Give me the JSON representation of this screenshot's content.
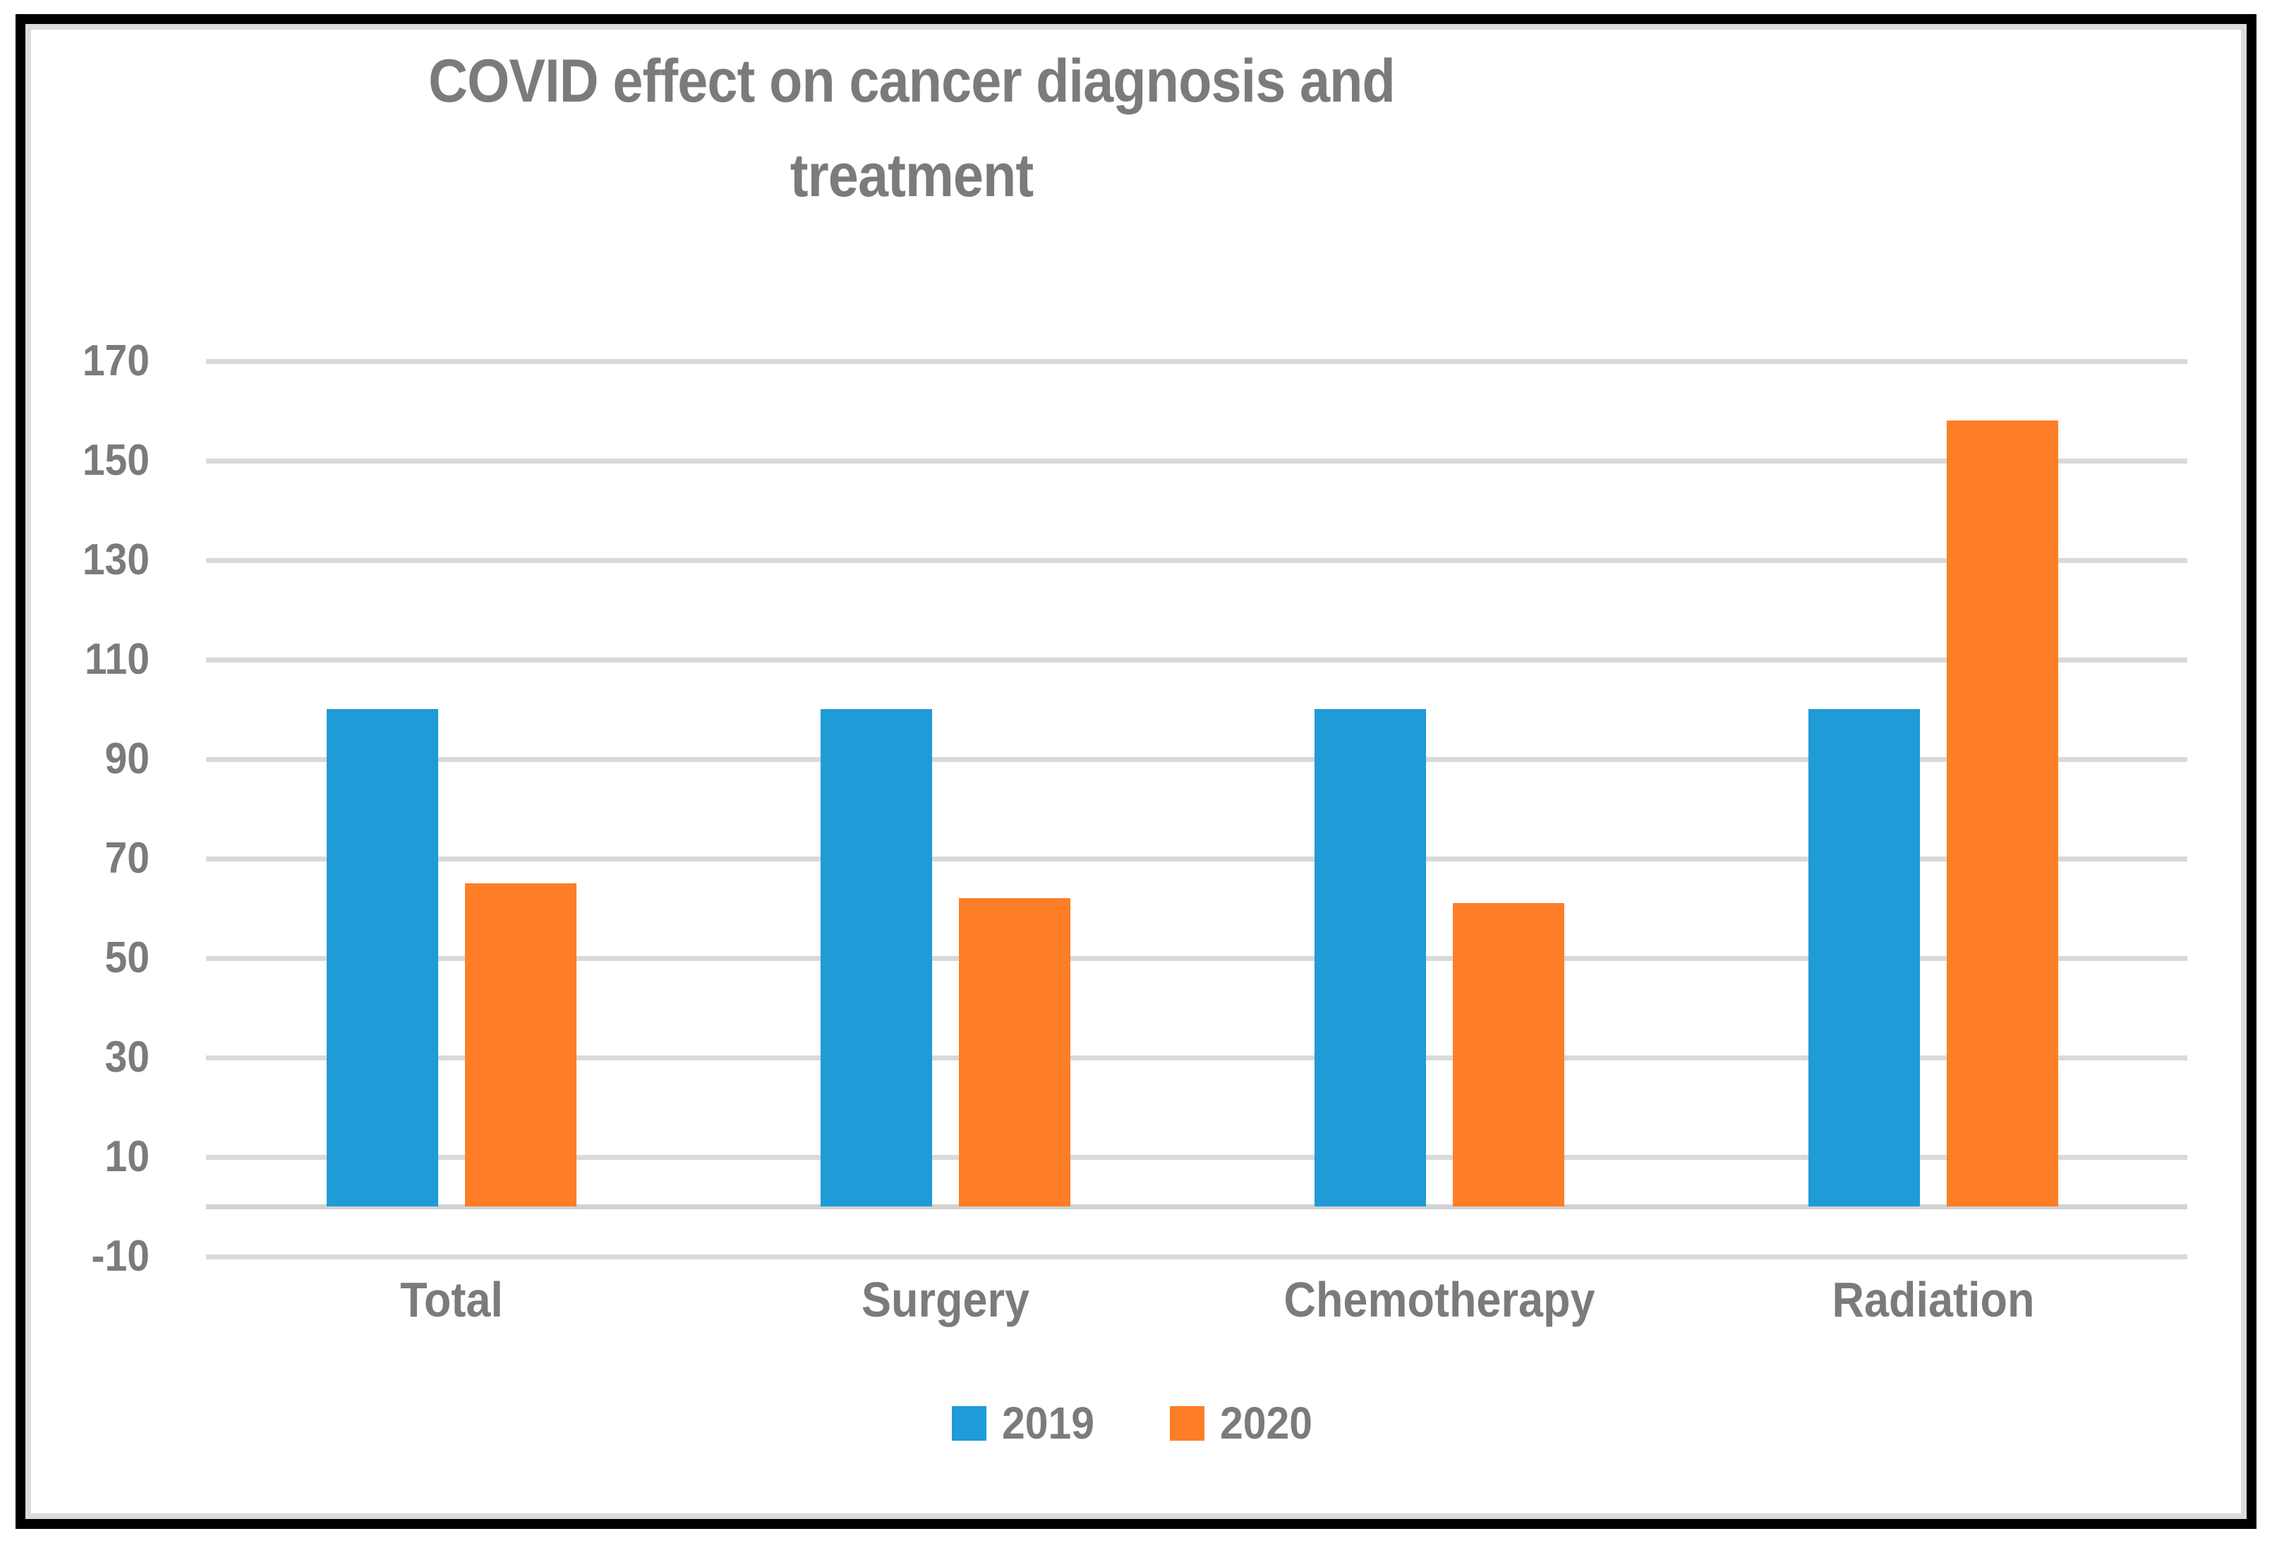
{
  "chart_data": {
    "type": "bar",
    "title": "COVID effect on cancer diagnosis and treatment",
    "categories": [
      "Total",
      "Surgery",
      "Chemotherapy",
      "Radiation"
    ],
    "series": [
      {
        "name": "2019",
        "color": "#1f9bd7",
        "values": [
          100,
          100,
          100,
          100
        ]
      },
      {
        "name": "2020",
        "color": "#fd7e27",
        "values": [
          65,
          62,
          61,
          158
        ]
      }
    ],
    "y_axis": {
      "min": -10,
      "max": 170,
      "tick_step": 20,
      "tick_labels": [
        "170",
        "150",
        "130",
        "110",
        "90",
        "70",
        "50",
        "30",
        "10",
        "-10"
      ],
      "baseline_value": 0
    },
    "xlabel": "",
    "ylabel": "",
    "grid": "horizontal-only",
    "legend_position": "bottom",
    "legend_items": [
      {
        "label": "2019",
        "color": "#1f9bd7"
      },
      {
        "label": "2020",
        "color": "#fd7e27"
      }
    ]
  },
  "colors": {
    "frame_border": "#000000",
    "chart_area_border": "#dcdcdc",
    "gridline": "#d9d9d9",
    "text": "#7b7b7b",
    "background": "#ffffff"
  }
}
